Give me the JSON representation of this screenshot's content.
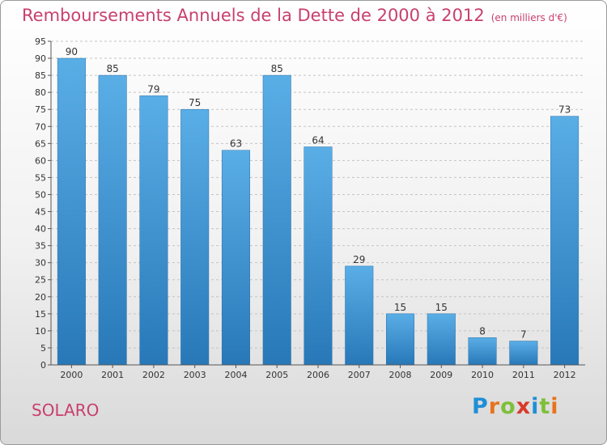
{
  "chart_data": {
    "type": "bar",
    "title": "Remboursements Annuels de la Dette de 2000 à 2012",
    "subtitle": "(en milliers d'€)",
    "categories": [
      "2000",
      "2001",
      "2002",
      "2003",
      "2004",
      "2005",
      "2006",
      "2007",
      "2008",
      "2009",
      "2010",
      "2011",
      "2012"
    ],
    "values": [
      90,
      85,
      79,
      75,
      63,
      85,
      64,
      29,
      15,
      15,
      8,
      7,
      73
    ],
    "ylim": [
      0,
      95
    ],
    "ytick_step": 5,
    "grid": "horizontal dashed",
    "data_labels": true,
    "colors": {
      "bar_top": "#5aaee6",
      "bar_bottom": "#2878b8",
      "title": "#c8406e"
    }
  },
  "footer": {
    "commune": "SOLARO",
    "logo": {
      "text": "Proxiti",
      "letters": [
        {
          "ch": "P",
          "color": "#1f8fd6"
        },
        {
          "ch": "r",
          "color": "#e8731c"
        },
        {
          "ch": "o",
          "color": "#7fbf3a"
        },
        {
          "ch": "x",
          "color": "#d83a2a"
        },
        {
          "ch": "i",
          "color": "#1f8fd6"
        },
        {
          "ch": "t",
          "color": "#7fbf3a"
        },
        {
          "ch": "i",
          "color": "#e8731c"
        }
      ]
    }
  }
}
